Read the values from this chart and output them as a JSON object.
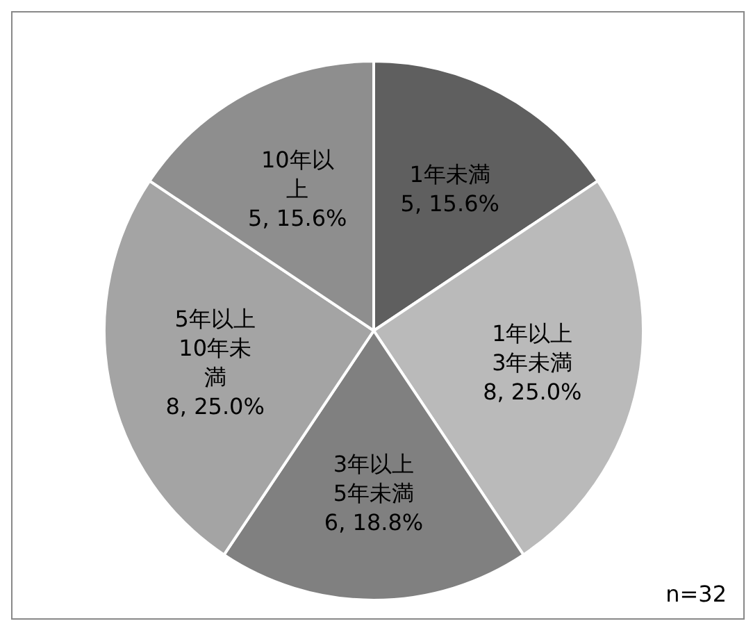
{
  "chart_data": {
    "type": "pie",
    "categories": [
      "1年未満",
      "1年以上3年未満",
      "3年以上5年未満",
      "5年以上10年未満",
      "10年以上"
    ],
    "values": [
      5,
      8,
      6,
      8,
      5
    ],
    "value_labels": [
      "5, 15.6%",
      "8, 25.0%",
      "6, 18.8%",
      "8, 25.0%",
      "5, 15.6%"
    ],
    "colors": [
      "#5f5f5f",
      "#bababa",
      "#808080",
      "#a4a4a4",
      "#8e8e8e"
    ],
    "annotations": [
      "n=32"
    ],
    "legend": false
  }
}
